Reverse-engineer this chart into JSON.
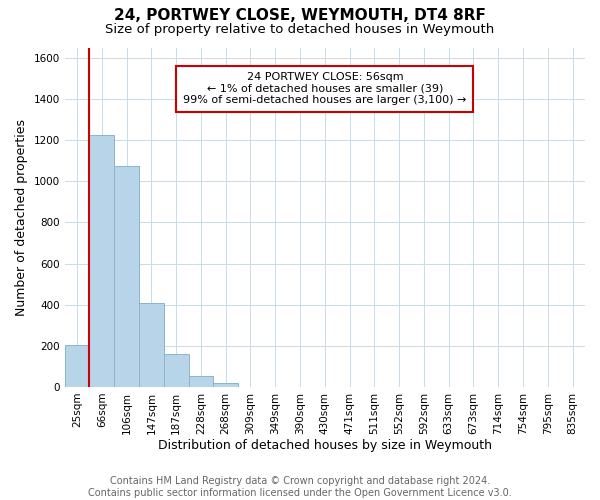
{
  "title": "24, PORTWEY CLOSE, WEYMOUTH, DT4 8RF",
  "subtitle": "Size of property relative to detached houses in Weymouth",
  "xlabel": "Distribution of detached houses by size in Weymouth",
  "ylabel": "Number of detached properties",
  "bar_labels": [
    "25sqm",
    "66sqm",
    "106sqm",
    "147sqm",
    "187sqm",
    "228sqm",
    "268sqm",
    "309sqm",
    "349sqm",
    "390sqm",
    "430sqm",
    "471sqm",
    "511sqm",
    "552sqm",
    "592sqm",
    "633sqm",
    "673sqm",
    "714sqm",
    "754sqm",
    "795sqm",
    "835sqm"
  ],
  "bar_values": [
    205,
    1225,
    1075,
    410,
    160,
    55,
    20,
    0,
    0,
    0,
    0,
    0,
    0,
    0,
    0,
    0,
    0,
    0,
    0,
    0,
    0
  ],
  "bar_color": "#b8d4e8",
  "bar_edge_color": "#8ab4d0",
  "ylim": [
    0,
    1650
  ],
  "yticks": [
    0,
    200,
    400,
    600,
    800,
    1000,
    1200,
    1400,
    1600
  ],
  "property_line_color": "#cc0000",
  "annotation_box_text": "24 PORTWEY CLOSE: 56sqm\n← 1% of detached houses are smaller (39)\n99% of semi-detached houses are larger (3,100) →",
  "footer_line1": "Contains HM Land Registry data © Crown copyright and database right 2024.",
  "footer_line2": "Contains public sector information licensed under the Open Government Licence v3.0.",
  "background_color": "#ffffff",
  "grid_color": "#c8dce8",
  "title_fontsize": 11,
  "subtitle_fontsize": 9.5,
  "axis_label_fontsize": 9,
  "tick_fontsize": 7.5,
  "annotation_fontsize": 8,
  "footer_fontsize": 7
}
